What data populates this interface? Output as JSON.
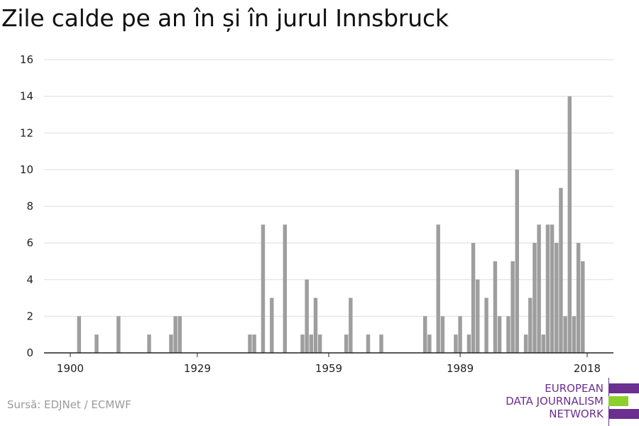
{
  "title": "Zile calde pe an în și în jurul Innsbruck",
  "source": "Sursă: EDJNet / ECMWF",
  "logo": {
    "line1": "EUROPEAN",
    "line2": "DATA JOURNALISM",
    "line3": "NETWORK"
  },
  "colors": {
    "bar": "#9e9e9e",
    "grid": "#dddddd",
    "axis": "#222222",
    "logo_purple": "#6b2f8f",
    "logo_green": "#8ccf2f"
  },
  "chart_data": {
    "type": "bar",
    "title": "Zile calde pe an în și în jurul Innsbruck",
    "xlabel": "",
    "ylabel": "",
    "xlim": [
      1894,
      2024
    ],
    "ylim": [
      0,
      16
    ],
    "yticks": [
      0,
      2,
      4,
      6,
      8,
      10,
      12,
      14,
      16
    ],
    "xticks": [
      1900,
      1929,
      1959,
      1989,
      2018
    ],
    "grid": true,
    "x": [
      1902,
      1906,
      1911,
      1918,
      1923,
      1924,
      1925,
      1941,
      1942,
      1944,
      1946,
      1949,
      1953,
      1954,
      1955,
      1956,
      1957,
      1963,
      1964,
      1968,
      1971,
      1981,
      1982,
      1984,
      1985,
      1988,
      1989,
      1991,
      1992,
      1993,
      1995,
      1997,
      1998,
      2000,
      2001,
      2002,
      2004,
      2005,
      2006,
      2007,
      2008,
      2009,
      2010,
      2011,
      2012,
      2013,
      2014,
      2015,
      2016,
      2017,
      2018,
      2019
    ],
    "values": [
      2,
      1,
      2,
      1,
      1,
      2,
      2,
      1,
      1,
      7,
      3,
      7,
      1,
      4,
      1,
      3,
      1,
      1,
      3,
      1,
      1,
      2,
      1,
      7,
      2,
      1,
      2,
      1,
      6,
      4,
      3,
      5,
      2,
      2,
      5,
      10,
      1,
      3,
      6,
      7,
      1,
      7,
      7,
      6,
      9,
      2,
      14,
      2,
      6,
      5,
      0,
      0
    ]
  }
}
